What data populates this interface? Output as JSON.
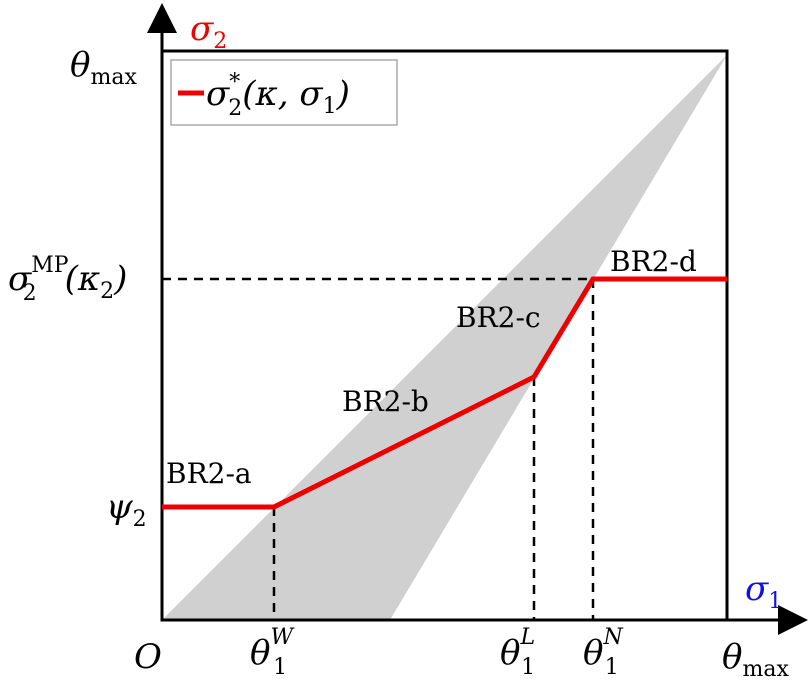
{
  "axes": {
    "origin": "O",
    "x_label": {
      "base": "σ",
      "sub": "1"
    },
    "y_label": {
      "base": "σ",
      "sub": "2"
    }
  },
  "x_ticks": [
    {
      "base": "θ",
      "sub": "1",
      "sup": "W"
    },
    {
      "base": "θ",
      "sub": "1",
      "sup": "L"
    },
    {
      "base": "θ",
      "sub": "1",
      "sup": "N"
    },
    {
      "base": "θ",
      "sub": "max"
    }
  ],
  "y_ticks": [
    {
      "base": "ψ",
      "sub": "2"
    },
    {
      "base": "σ",
      "sub": "2",
      "sup": "MP",
      "open": "(κ",
      "inner_sub": "2",
      "close": ")"
    },
    {
      "base": "θ",
      "sub": "max"
    }
  ],
  "legend": {
    "base": "σ",
    "sub": "2",
    "sup": "*",
    "open": "(κ, σ",
    "inner_sub": "1",
    "close": ")"
  },
  "regions": [
    "BR2-a",
    "BR2-b",
    "BR2-c",
    "BR2-d"
  ]
}
